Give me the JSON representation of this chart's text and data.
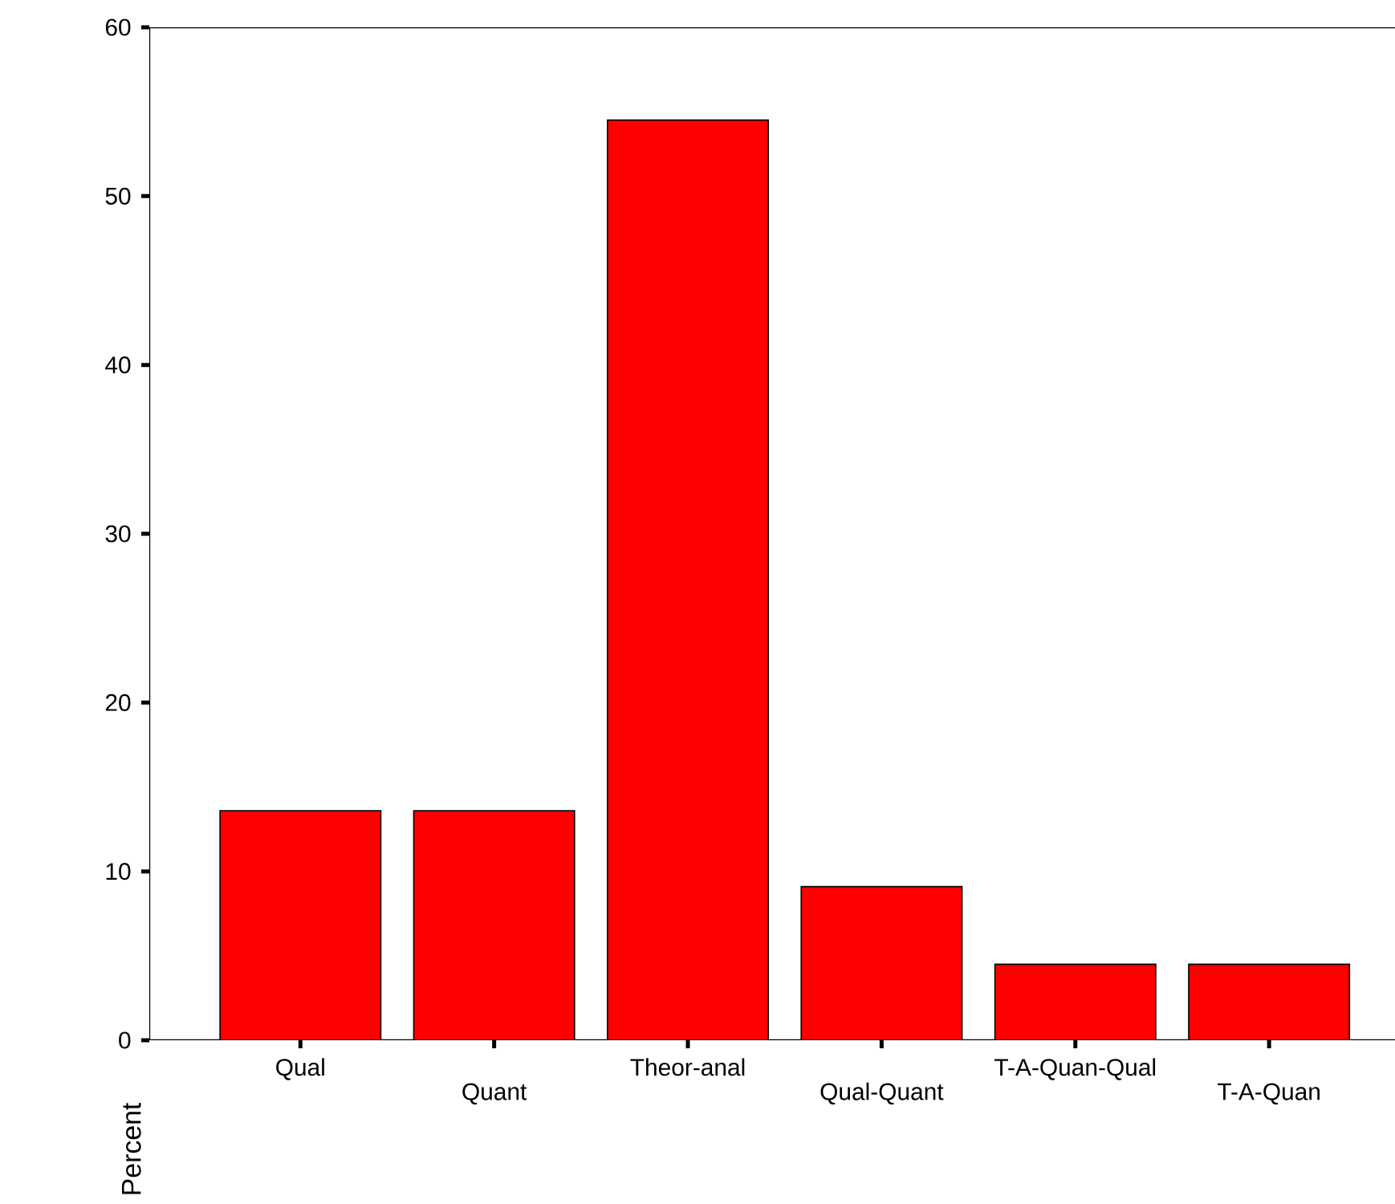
{
  "chart_data": {
    "type": "bar",
    "ylabel": "Percent",
    "categories": [
      "Qual",
      "Quant",
      "Theor-anal",
      "Qual-Quant",
      "T-A-Quan-Qual",
      "T-A-Quan"
    ],
    "values": [
      13.6,
      13.6,
      54.5,
      9.1,
      4.5,
      4.5
    ],
    "color": "#ff0000",
    "ylim": [
      0,
      60
    ],
    "yticks": [
      0,
      10,
      20,
      30,
      40,
      50,
      60
    ]
  }
}
